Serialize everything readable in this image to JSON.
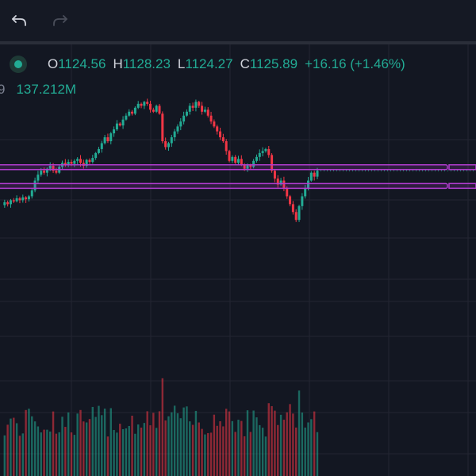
{
  "toolbar": {
    "undo_icon": "undo-arrow-icon",
    "redo_icon": "redo-arrow-icon"
  },
  "legend": {
    "status": "live",
    "open_label": "O",
    "open_value": "1124.56",
    "high_label": "H",
    "high_value": "1128.23",
    "low_label": "L",
    "low_value": "1124.27",
    "close_label": "C",
    "close_value": "1125.89",
    "change": "+16.16 (+1.46%)"
  },
  "volume_legend": {
    "prev_fragment": "9",
    "value": "137.212M"
  },
  "colors": {
    "up": "#22ab94",
    "down": "#f23645",
    "zone": "#b13ccf",
    "background": "#131722",
    "grid": "#232632"
  },
  "chart_data": {
    "type": "candlestick",
    "y_visible_range": [
      900,
      1150
    ],
    "zones": [
      {
        "top": 1076,
        "bottom": 1074
      },
      {
        "top": 1057,
        "bottom": 1054
      }
    ],
    "price_path": [
      1035,
      1038,
      1036,
      1040,
      1039,
      1042,
      1040,
      1043,
      1041,
      1044,
      1050,
      1060,
      1066,
      1070,
      1068,
      1072,
      1075,
      1070,
      1068,
      1074,
      1078,
      1076,
      1079,
      1077,
      1080,
      1082,
      1078,
      1075,
      1081,
      1079,
      1083,
      1088,
      1092,
      1098,
      1104,
      1100,
      1108,
      1112,
      1118,
      1116,
      1122,
      1126,
      1130,
      1128,
      1134,
      1138,
      1136,
      1140,
      1138,
      1132,
      1130,
      1136,
      1128,
      1100,
      1094,
      1098,
      1104,
      1110,
      1115,
      1120,
      1126,
      1130,
      1136,
      1134,
      1140,
      1136,
      1130,
      1132,
      1126,
      1120,
      1115,
      1110,
      1104,
      1100,
      1090,
      1080,
      1084,
      1078,
      1082,
      1076,
      1072,
      1076,
      1074,
      1080,
      1084,
      1088,
      1090,
      1092,
      1086,
      1070,
      1062,
      1056,
      1060,
      1052,
      1044,
      1036,
      1028,
      1020,
      1034,
      1044,
      1052,
      1060,
      1068,
      1064,
      1070
    ]
  }
}
